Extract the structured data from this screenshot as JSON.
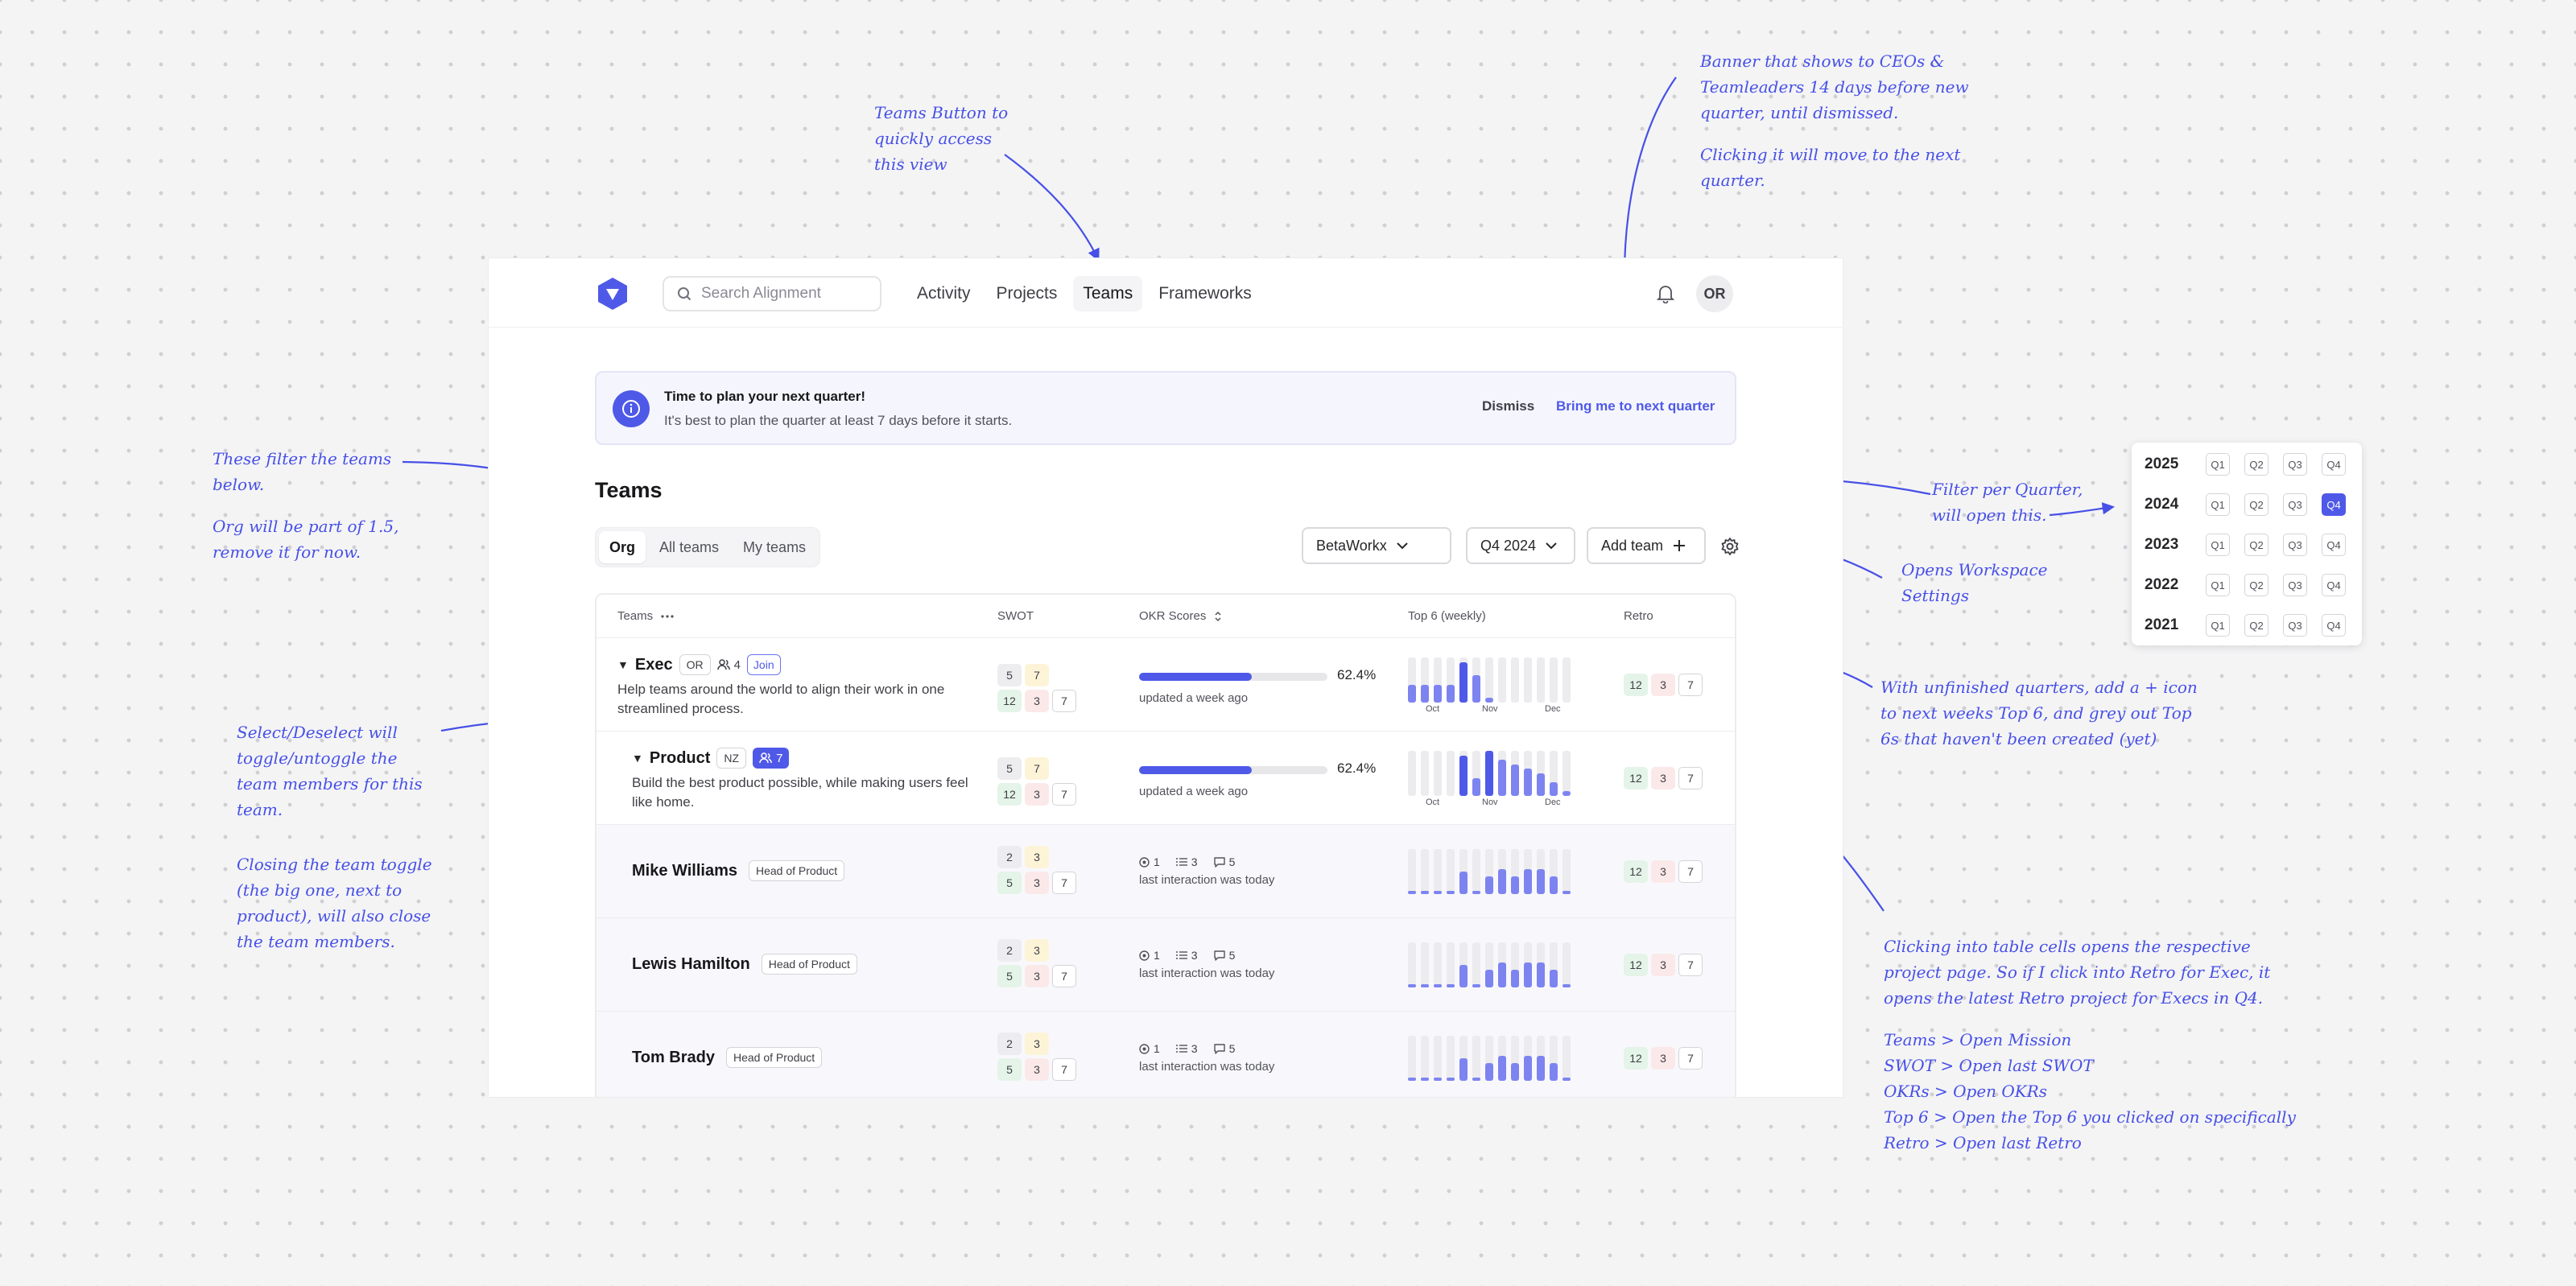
{
  "notes": {
    "teams_button": "Teams Button to\nquickly access\nthis view",
    "banner_a": "Banner that shows to CEOs &\nTeamleaders 14 days before new\nquarter, until dismissed.",
    "banner_b": "Clicking it will move to the next\nquarter.",
    "filters_a": "These filter the teams\nbelow.",
    "filters_b": "Org will be part of 1.5,\nremove it for now.",
    "quarter_filter": "Filter per Quarter,\nwill open this.",
    "workspace_settings": "Opens Workspace\nSettings",
    "unfinished": "With unfinished quarters, add a + icon\nto next weeks Top 6, and grey out Top\n6s that haven't been created (yet)",
    "select_a": "Select/Deselect will\ntoggle/untoggle the\nteam members for this\nteam.",
    "select_b": "Closing the team toggle\n(the big one, next to\nproduct), will also close\nthe team members.",
    "cells_a": "Clicking into table cells opens the respective\nproject page. So if I click into Retro for Exec, it\nopens the latest Retro project for Execs in Q4.",
    "cells_b": "Teams > Open Mission\nSWOT > Open last SWOT\nOKRs > Open OKRs\nTop 6 > Open the Top 6 you clicked on specifically\nRetro > Open last Retro"
  },
  "search": {
    "placeholder": "Search Alignment"
  },
  "nav": [
    "Activity",
    "Projects",
    "Teams",
    "Frameworks"
  ],
  "user_initials": "OR",
  "banner": {
    "title": "Time to plan your next quarter!",
    "subtitle": "It's best to plan the quarter at least 7 days before it starts.",
    "dismiss": "Dismiss",
    "cta": "Bring me to next quarter"
  },
  "page_title": "Teams",
  "tabs": [
    "Org",
    "All teams",
    "My teams"
  ],
  "workspace_select": "BetaWorkx",
  "quarter_select": "Q4 2024",
  "add_team": "Add team",
  "columns": {
    "teams": "Teams",
    "swot": "SWOT",
    "okr": "OKR Scores",
    "top6": "Top 6 (weekly)",
    "retro": "Retro"
  },
  "months": [
    "Oct",
    "Nov",
    "Dec"
  ],
  "rows": [
    {
      "kind": "team",
      "name": "Exec",
      "initials": "OR",
      "members": "4",
      "join": "Join",
      "desc": "Help teams around the world to align their work in one streamlined process.",
      "swot": [
        "5",
        "7",
        "12",
        "3",
        "7"
      ],
      "okr_pct": "62.4%",
      "okr_fill": 0.6,
      "okr_sub": "updated a week ago",
      "top6": [
        0.4,
        0.4,
        0.4,
        0.4,
        0.9,
        0.6,
        0.1,
        0,
        0,
        0,
        0,
        0,
        0
      ],
      "retro": [
        "12",
        "3",
        "7"
      ]
    },
    {
      "kind": "team",
      "name": "Product",
      "initials": "NZ",
      "members": "7",
      "desc": "Build the best product possible, while making users feel like home.",
      "swot": [
        "5",
        "7",
        "12",
        "3",
        "7"
      ],
      "okr_pct": "62.4%",
      "okr_fill": 0.6,
      "okr_sub": "updated a week ago",
      "top6": [
        0,
        0,
        0,
        0,
        0.9,
        0.4,
        1.0,
        0.8,
        0.7,
        0.6,
        0.5,
        0.3,
        0.1
      ],
      "retro": [
        "12",
        "3",
        "7"
      ]
    },
    {
      "kind": "member",
      "name": "Mike Williams",
      "role": "Head of Product",
      "swot": [
        "2",
        "3",
        "5",
        "3",
        "7"
      ],
      "stats": [
        "1",
        "3",
        "5"
      ],
      "okr_sub": "last interaction was today",
      "top6": [
        0.05,
        0.05,
        0.05,
        0.05,
        0.5,
        0.05,
        0.4,
        0.55,
        0.4,
        0.55,
        0.55,
        0.4,
        0.05
      ],
      "retro": [
        "12",
        "3",
        "7"
      ]
    },
    {
      "kind": "member",
      "name": "Lewis Hamilton",
      "role": "Head of Product",
      "swot": [
        "2",
        "3",
        "5",
        "3",
        "7"
      ],
      "stats": [
        "1",
        "3",
        "5"
      ],
      "okr_sub": "last interaction was today",
      "top6": [
        0.05,
        0.05,
        0.05,
        0.05,
        0.5,
        0.05,
        0.4,
        0.55,
        0.4,
        0.55,
        0.55,
        0.4,
        0.05
      ],
      "retro": [
        "12",
        "3",
        "7"
      ]
    },
    {
      "kind": "member",
      "name": "Tom Brady",
      "role": "Head of Product",
      "swot": [
        "2",
        "3",
        "5",
        "3",
        "7"
      ],
      "stats": [
        "1",
        "3",
        "5"
      ],
      "okr_sub": "last interaction was today",
      "top6": [
        0.05,
        0.05,
        0.05,
        0.05,
        0.5,
        0.05,
        0.4,
        0.55,
        0.4,
        0.55,
        0.55,
        0.4,
        0.05
      ],
      "retro": [
        "12",
        "3",
        "7"
      ]
    }
  ],
  "quarter_picker": {
    "years": [
      "2025",
      "2024",
      "2023",
      "2022",
      "2021"
    ],
    "quarters": [
      "Q1",
      "Q2",
      "Q3",
      "Q4"
    ],
    "selected": {
      "year": "2024",
      "quarter": "Q4"
    }
  },
  "colors": {
    "accent": "#4f59e8",
    "annotation": "#4750e6"
  }
}
